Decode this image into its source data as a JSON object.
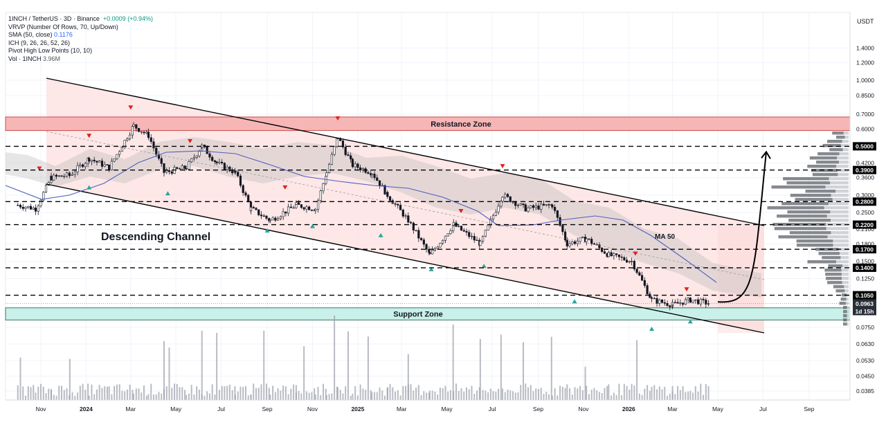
{
  "legend": {
    "symbol": "1INCH / TetherUS · 3D · Binance",
    "change": "+0.0009 (+0.94%)",
    "vrvp": "VRVP (Number Of Rows, 70, Up/Down)",
    "sma_label": "SMA (50, close)",
    "sma_value": "0.1176",
    "ich": "ICH (9, 26, 26, 52, 26)",
    "pivot": "Pivot High Low Points (10, 10)",
    "vol_label": "Vol · 1INCH",
    "vol_value": "3.96M"
  },
  "axis": {
    "unit": "USDT",
    "y_ticks": [
      "1.4000",
      "1.2000",
      "1.0000",
      "0.8500",
      "0.7000",
      "0.6000",
      "0.4200",
      "0.3600",
      "0.3000",
      "0.2500",
      "0.2100",
      "0.1800",
      "0.1500",
      "0.1250",
      "0.0750",
      "0.0630",
      "0.0530",
      "0.0450",
      "0.0385"
    ],
    "x_ticks": [
      "Nov",
      "2024",
      "Mar",
      "May",
      "Jul",
      "Sep",
      "Nov",
      "2025",
      "Mar",
      "May",
      "Jul",
      "Sep",
      "Nov",
      "2026",
      "Mar",
      "May",
      "Jul",
      "Sep"
    ]
  },
  "price_tags": [
    {
      "label": "0.5000",
      "style": "black"
    },
    {
      "label": "0.3900",
      "style": "black"
    },
    {
      "label": "0.2800",
      "style": "black"
    },
    {
      "label": "0.2200",
      "style": "black"
    },
    {
      "label": "0.1700",
      "style": "black"
    },
    {
      "label": "0.1400",
      "style": "black"
    },
    {
      "label": "0.1050",
      "style": "black"
    },
    {
      "label": "0.0963",
      "style": "dark"
    },
    {
      "label": "1d 15h",
      "style": "dark"
    }
  ],
  "annotations": {
    "resistance": "Resistance Zone",
    "support": "Support Zone",
    "channel": "Descending Channel",
    "ma": "MA 50"
  },
  "colors": {
    "up": "#089981",
    "down": "#f23645",
    "candle": "#131722",
    "resistance_fill": "#f7b6b6",
    "support_fill": "#c9f1e9",
    "channel_fill": "#fde3e3",
    "sma": "#4b5fbf",
    "pivot_high": "#e02020",
    "pivot_low": "#26a69a"
  },
  "chart_data": {
    "type": "candlestick",
    "symbol": "1INCH / TetherUS",
    "interval": "3D",
    "exchange": "Binance",
    "y_scale": "log",
    "y_range": [
      0.035,
      1.6
    ],
    "x_range": [
      "2023-10",
      "2026-10"
    ],
    "close_price": 0.0963,
    "price_path": [
      [
        "2023-10-01",
        0.27
      ],
      [
        "2023-10-25",
        0.26
      ],
      [
        "2023-11-15",
        0.36
      ],
      [
        "2023-12-10",
        0.37
      ],
      [
        "2024-01-05",
        0.44
      ],
      [
        "2024-02-01",
        0.4
      ],
      [
        "2024-03-05",
        0.62
      ],
      [
        "2024-03-25",
        0.56
      ],
      [
        "2024-04-15",
        0.38
      ],
      [
        "2024-05-15",
        0.4
      ],
      [
        "2024-06-05",
        0.5
      ],
      [
        "2024-06-25",
        0.42
      ],
      [
        "2024-07-20",
        0.38
      ],
      [
        "2024-08-10",
        0.26
      ],
      [
        "2024-09-05",
        0.23
      ],
      [
        "2024-10-10",
        0.27
      ],
      [
        "2024-11-05",
        0.26
      ],
      [
        "2024-11-20",
        0.38
      ],
      [
        "2024-12-05",
        0.55
      ],
      [
        "2024-12-25",
        0.41
      ],
      [
        "2025-01-20",
        0.38
      ],
      [
        "2025-02-10",
        0.3
      ],
      [
        "2025-03-10",
        0.23
      ],
      [
        "2025-04-08",
        0.16
      ],
      [
        "2025-05-10",
        0.22
      ],
      [
        "2025-06-15",
        0.18
      ],
      [
        "2025-07-15",
        0.3
      ],
      [
        "2025-08-15",
        0.26
      ],
      [
        "2025-09-20",
        0.27
      ],
      [
        "2025-10-10",
        0.18
      ],
      [
        "2025-11-05",
        0.19
      ],
      [
        "2025-12-05",
        0.16
      ],
      [
        "2026-01-05",
        0.15
      ],
      [
        "2026-02-01",
        0.1
      ],
      [
        "2026-03-01",
        0.095
      ],
      [
        "2026-03-25",
        0.1
      ],
      [
        "2026-04-20",
        0.0963
      ]
    ],
    "levels": [
      0.5,
      0.39,
      0.28,
      0.22,
      0.17,
      0.14,
      0.105
    ],
    "resistance_zone": [
      0.59,
      0.68
    ],
    "support_zone": [
      0.081,
      0.092
    ],
    "channel_upper": [
      [
        "2023-10-30",
        1.02
      ],
      [
        "2026-05-30",
        0.21
      ]
    ],
    "channel_lower": [
      [
        "2023-10-30",
        0.34
      ],
      [
        "2026-06-30",
        0.066
      ]
    ],
    "sma_50_last": 0.1176,
    "pivot_highs": [
      [
        "2023-10-30",
        0.39
      ],
      [
        "2024-01-05",
        0.55
      ],
      [
        "2024-03-01",
        0.74
      ],
      [
        "2024-05-20",
        0.52
      ],
      [
        "2024-09-25",
        0.32
      ],
      [
        "2024-12-05",
        0.66
      ],
      [
        "2025-05-20",
        0.25
      ],
      [
        "2025-07-15",
        0.4
      ],
      [
        "2026-01-10",
        0.16
      ],
      [
        "2026-03-20",
        0.11
      ]
    ],
    "pivot_lows": [
      [
        "2024-01-05",
        0.33
      ],
      [
        "2024-04-20",
        0.31
      ],
      [
        "2024-09-01",
        0.21
      ],
      [
        "2024-11-01",
        0.22
      ],
      [
        "2025-02-01",
        0.2
      ],
      [
        "2025-04-10",
        0.14
      ],
      [
        "2025-06-20",
        0.145
      ],
      [
        "2025-10-20",
        0.1
      ],
      [
        "2026-02-01",
        0.075
      ],
      [
        "2026-03-25",
        0.081
      ]
    ],
    "volume_last": "3.96M",
    "projection": {
      "from": [
        "2026-05-01",
        0.098
      ],
      "to": [
        "2026-07-01",
        0.5
      ]
    }
  }
}
